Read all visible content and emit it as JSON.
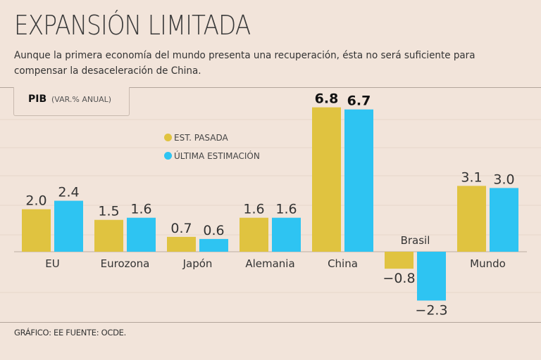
{
  "header": {
    "title": "EXPANSIÓN LIMITADA",
    "subtitle": "Aunque la primera economía del mundo presenta una recuperación, ésta no será suficiente para compensar la desaceleración de China."
  },
  "unit_box": {
    "label": "PIB",
    "sublabel": "(VAR.% ANUAL)"
  },
  "footer": {
    "source": "GRÁFICO: EE  FUENTE: OCDE."
  },
  "colors": {
    "past": "#e0c340",
    "latest": "#2ec4f2",
    "background": "#f2e4da"
  },
  "chart_data": {
    "type": "bar",
    "title": "PIB (VAR.% ANUAL)",
    "categories": [
      "EU",
      "Eurozona",
      "Japón",
      "Alemania",
      "China",
      "Brasil",
      "Mundo"
    ],
    "series": [
      {
        "name": "EST. PASADA",
        "values": [
          2.0,
          1.5,
          0.7,
          1.6,
          6.8,
          -0.8,
          3.1
        ]
      },
      {
        "name": "ÚLTIMA ESTIMACIÓN",
        "values": [
          2.4,
          1.6,
          0.6,
          1.6,
          6.7,
          -2.3,
          3.0
        ]
      }
    ],
    "value_labels": [
      [
        "2.0",
        "1.5",
        "0.7",
        "1.6",
        "6.8",
        "−0.8",
        "3.1"
      ],
      [
        "2.4",
        "1.6",
        "0.6",
        "1.6",
        "6.7",
        "−2.3",
        "3.0"
      ]
    ],
    "highlighted_category": "China",
    "legend_position": "top-left",
    "grid": true,
    "xlabel": "",
    "ylabel": ""
  }
}
